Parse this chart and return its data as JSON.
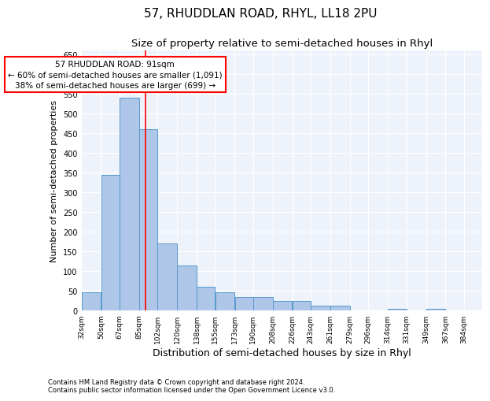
{
  "title1": "57, RHUDDLAN ROAD, RHYL, LL18 2PU",
  "title2": "Size of property relative to semi-detached houses in Rhyl",
  "xlabel": "Distribution of semi-detached houses by size in Rhyl",
  "ylabel": "Number of semi-detached properties",
  "footnote": "Contains HM Land Registry data © Crown copyright and database right 2024.\nContains public sector information licensed under the Open Government Licence v3.0.",
  "bar_left_edges": [
    32,
    50,
    67,
    85,
    102,
    120,
    138,
    155,
    173,
    190,
    208,
    226,
    243,
    261,
    279,
    296,
    314,
    331,
    349,
    367
  ],
  "bar_widths": [
    18,
    17,
    18,
    17,
    18,
    18,
    17,
    18,
    17,
    18,
    18,
    17,
    18,
    18,
    17,
    18,
    17,
    18,
    18,
    17
  ],
  "bar_heights": [
    47,
    345,
    540,
    460,
    170,
    115,
    60,
    47,
    35,
    35,
    25,
    25,
    12,
    12,
    0,
    0,
    5,
    0,
    5,
    0
  ],
  "bar_color": "#aec6e8",
  "bar_edge_color": "#5599cc",
  "property_sqm": 91,
  "property_line_color": "red",
  "annotation_text": "57 RHUDDLAN ROAD: 91sqm\n← 60% of semi-detached houses are smaller (1,091)\n38% of semi-detached houses are larger (699) →",
  "annotation_box_color": "white",
  "annotation_box_edge_color": "red",
  "ylim": [
    0,
    660
  ],
  "yticks": [
    0,
    50,
    100,
    150,
    200,
    250,
    300,
    350,
    400,
    450,
    500,
    550,
    600,
    650
  ],
  "bg_color": "#eef3fb",
  "grid_color": "white",
  "title1_fontsize": 11,
  "title2_fontsize": 9.5,
  "xlabel_fontsize": 9,
  "ylabel_fontsize": 8,
  "footnote_fontsize": 6,
  "tick_labels": [
    "32sqm",
    "50sqm",
    "67sqm",
    "85sqm",
    "102sqm",
    "120sqm",
    "138sqm",
    "155sqm",
    "173sqm",
    "190sqm",
    "208sqm",
    "226sqm",
    "243sqm",
    "261sqm",
    "279sqm",
    "296sqm",
    "314sqm",
    "331sqm",
    "349sqm",
    "367sqm",
    "384sqm"
  ]
}
